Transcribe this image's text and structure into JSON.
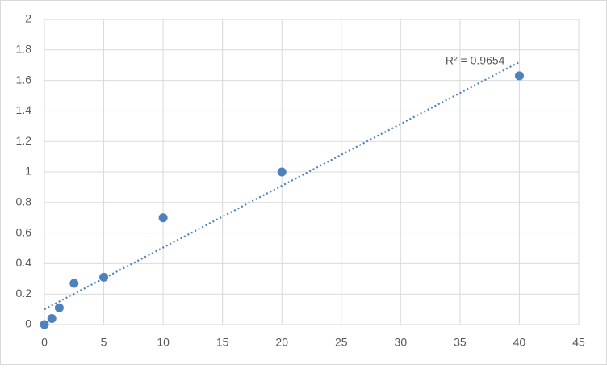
{
  "chart_data": {
    "type": "scatter",
    "x": [
      0,
      0.625,
      1.25,
      2.5,
      5,
      10,
      20,
      40
    ],
    "values": [
      0,
      0.04,
      0.11,
      0.27,
      0.31,
      0.7,
      1.0,
      1.63
    ],
    "color": "#4f81bd",
    "trendline": {
      "x": [
        0,
        40
      ],
      "values": [
        0.1,
        1.72
      ],
      "annotation": "R² = 0.9654"
    },
    "xlim": [
      0,
      45
    ],
    "xticks": [
      0,
      5,
      10,
      15,
      20,
      25,
      30,
      35,
      40,
      45
    ],
    "ylim": [
      0,
      2
    ],
    "yticks": [
      0,
      0.2,
      0.4,
      0.6,
      0.8,
      1,
      1.2,
      1.4,
      1.6,
      1.8,
      2
    ],
    "grid": true
  }
}
